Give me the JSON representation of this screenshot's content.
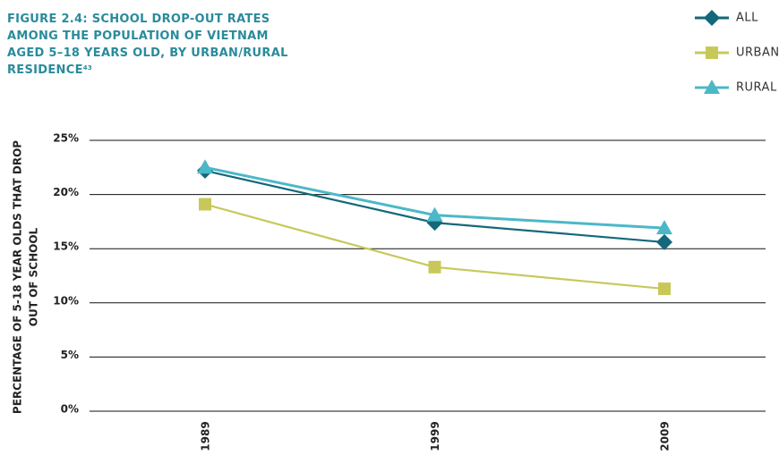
{
  "chart_data": {
    "type": "line",
    "title": [
      "FIGURE 2.4: SCHOOL DROP-OUT RATES",
      "AMONG THE POPULATION OF VIETNAM",
      "AGED 5–18 YEARS OLD, BY URBAN/RURAL",
      "RESIDENCE"
    ],
    "title_superscript": "43",
    "y_label": [
      "PERCENTAGE OF 5-18 YEAR OLDS THAT DROP",
      "OUT OF SCHOOL"
    ],
    "categories": [
      "1989",
      "1999",
      "2009"
    ],
    "series": [
      {
        "name": "ALL",
        "color": "#13687a",
        "marker": "diamond",
        "values": [
          22.2,
          17.4,
          15.6
        ]
      },
      {
        "name": "URBAN",
        "color": "#c8c85a",
        "marker": "square",
        "values": [
          19.1,
          13.3,
          11.3
        ]
      },
      {
        "name": "RURAL",
        "color": "#4bb8c8",
        "marker": "triangle",
        "values": [
          22.5,
          18.1,
          16.9
        ]
      }
    ],
    "ylim": [
      0,
      25
    ],
    "yticks": [
      {
        "value": 0,
        "label": "0%"
      },
      {
        "value": 5,
        "label": "5%"
      },
      {
        "value": 10,
        "label": "10%"
      },
      {
        "value": 15,
        "label": "15%"
      },
      {
        "value": 20,
        "label": "20%"
      },
      {
        "value": 25,
        "label": "25%"
      }
    ],
    "grid": true,
    "legend": "top-right"
  }
}
